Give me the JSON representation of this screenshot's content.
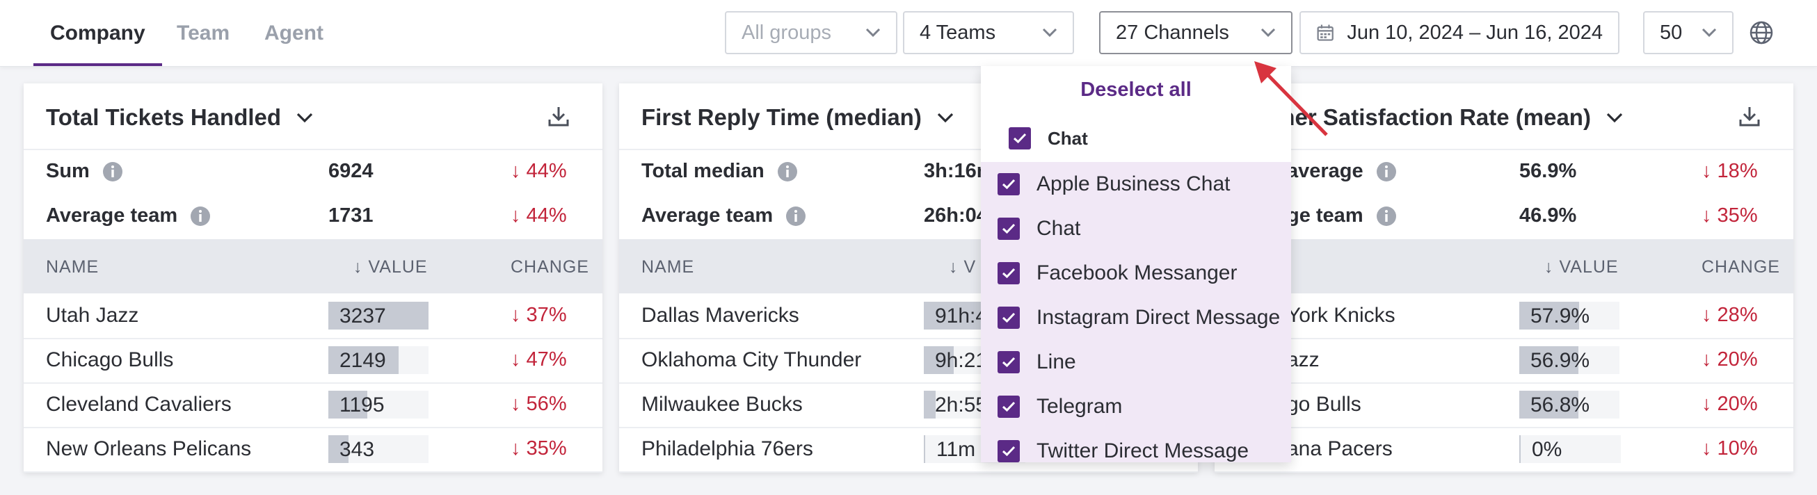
{
  "tabs": [
    {
      "label": "Company",
      "active": true
    },
    {
      "label": "Team",
      "active": false
    },
    {
      "label": "Agent",
      "active": false
    }
  ],
  "filters": {
    "groups": {
      "placeholder": "All groups"
    },
    "teams": {
      "value": "4 Teams"
    },
    "channels": {
      "value": "27 Channels"
    },
    "date_range": {
      "value": "Jun 10, 2024 – Jun 16, 2024"
    },
    "limit": {
      "value": "50"
    }
  },
  "icons": {
    "chevron": "chevron-down-icon",
    "calendar": "calendar-icon",
    "globe": "globe-icon",
    "download": "download-icon",
    "info": "info-icon",
    "check": "check-icon"
  },
  "colors": {
    "accent": "#5b2a86",
    "negative": "#c2243a",
    "bar": "#c6cad3"
  },
  "cards": [
    {
      "title": "Total Tickets Handled",
      "summary": [
        {
          "label": "Sum",
          "value": "6924",
          "change": "↓ 44%"
        },
        {
          "label": "Average team",
          "value": "1731",
          "change": "↓ 44%"
        }
      ],
      "columns": {
        "name": "NAME",
        "value": "↓  VALUE",
        "change": "CHANGE"
      },
      "rows": [
        {
          "name": "Utah Jazz",
          "value": "3237",
          "fill": 1.0,
          "change": "↓ 37%"
        },
        {
          "name": "Chicago Bulls",
          "value": "2149",
          "fill": 0.7,
          "change": "↓ 47%"
        },
        {
          "name": "Cleveland Cavaliers",
          "value": "1195",
          "fill": 0.39,
          "change": "↓ 56%"
        },
        {
          "name": "New Orleans Pelicans",
          "value": "343",
          "fill": 0.2,
          "change": "↓ 35%"
        }
      ]
    },
    {
      "title": "First Reply Time (median)",
      "summary": [
        {
          "label": "Total median",
          "value": "3h:16m",
          "change": ""
        },
        {
          "label": "Average team",
          "value": "26h:04",
          "change": ""
        }
      ],
      "columns": {
        "name": "NAME",
        "value": "↓ V",
        "change": ""
      },
      "rows": [
        {
          "name": "Dallas Mavericks",
          "value": "91h:4",
          "fill": 1.0,
          "change": ""
        },
        {
          "name": "Oklahoma City Thunder",
          "value": "9h:21",
          "fill": 0.3,
          "change": ""
        },
        {
          "name": "Milwaukee Bucks",
          "value": "2h:55",
          "fill": 0.12,
          "change": ""
        },
        {
          "name": "Philadelphia 76ers",
          "value": "11m",
          "fill": 0.0,
          "change": ""
        }
      ]
    },
    {
      "title": "omer Satisfaction Rate (mean)",
      "summary": [
        {
          "label": "average",
          "value": "56.9%",
          "change": "↓ 18%"
        },
        {
          "label": "ge team",
          "value": "46.9%",
          "change": "↓ 35%"
        }
      ],
      "columns": {
        "name": "",
        "value": "↓  VALUE",
        "change": "CHANGE"
      },
      "rows": [
        {
          "name": "York Knicks",
          "value": "57.9%",
          "fill": 0.6,
          "change": "↓ 28%"
        },
        {
          "name": "azz",
          "value": "56.9%",
          "fill": 0.59,
          "change": "↓ 20%"
        },
        {
          "name": "go Bulls",
          "value": "56.8%",
          "fill": 0.59,
          "change": "↓ 20%"
        },
        {
          "name": "ana Pacers",
          "value": "0%",
          "fill": 0.0,
          "change": "↓ 10%"
        }
      ]
    }
  ],
  "channel_dropdown": {
    "deselect_label": "Deselect all",
    "group_label": "Chat",
    "items": [
      {
        "label": "Apple Business Chat",
        "checked": true
      },
      {
        "label": "Chat",
        "checked": true
      },
      {
        "label": "Facebook Messanger",
        "checked": true
      },
      {
        "label": "Instagram Direct Message",
        "checked": true
      },
      {
        "label": "Line",
        "checked": true
      },
      {
        "label": "Telegram",
        "checked": true
      },
      {
        "label": "Twitter Direct Message",
        "checked": true
      }
    ]
  }
}
